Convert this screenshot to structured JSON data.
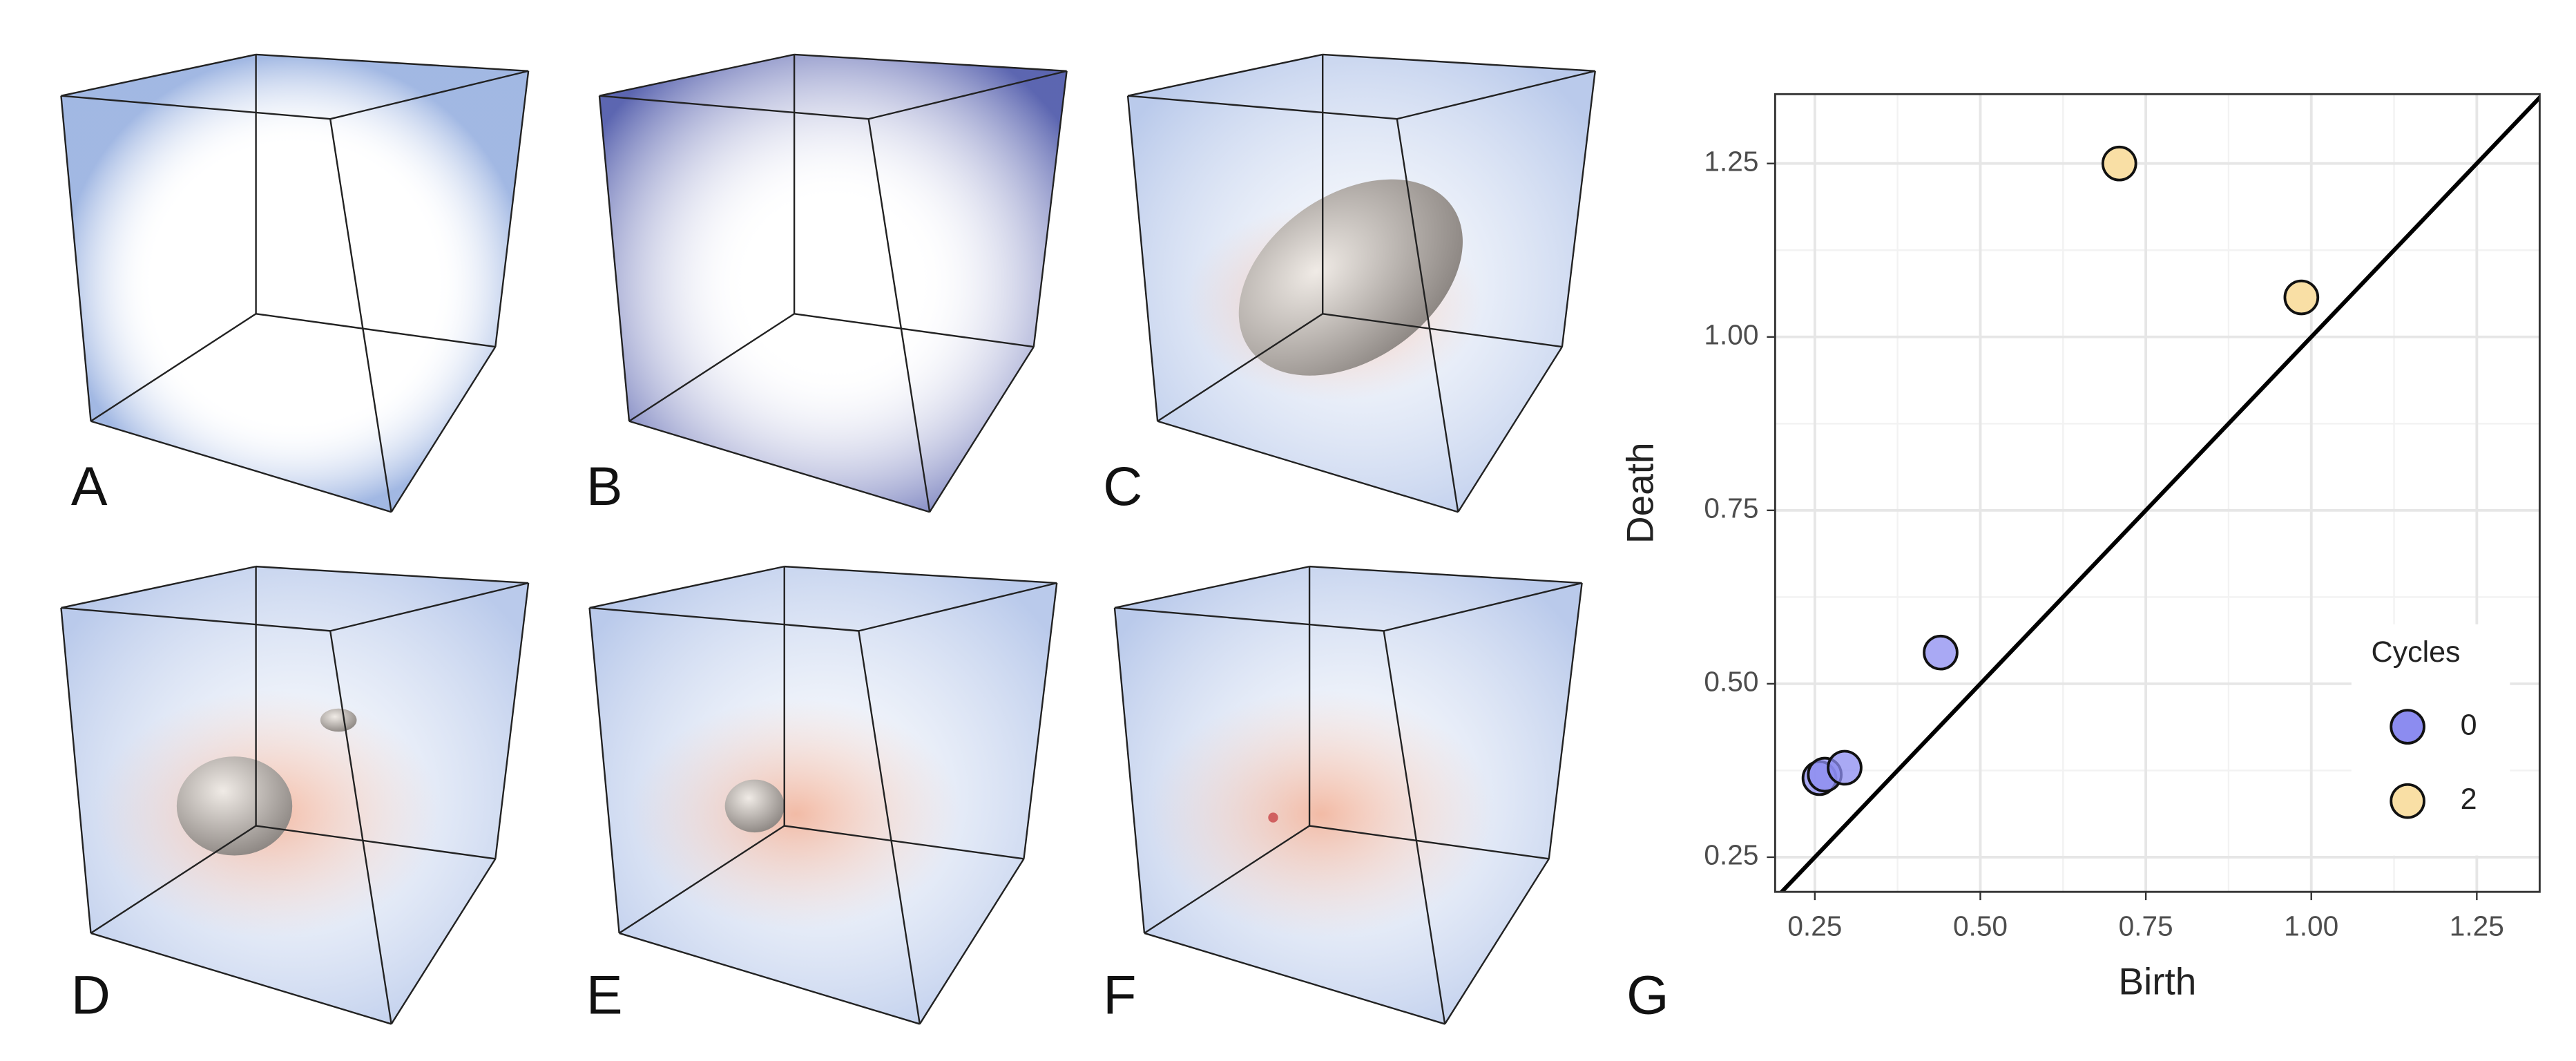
{
  "figure": {
    "panel_labels": [
      "A",
      "B",
      "C",
      "D",
      "E",
      "F",
      "G"
    ]
  },
  "chart_data": {
    "type": "scatter",
    "x_label": "Birth",
    "y_label": "Death",
    "legend_title": "Cycles",
    "legend_position": "right",
    "grid": true,
    "xlim": [
      0.19,
      1.345
    ],
    "ylim": [
      0.2,
      1.35
    ],
    "xticks": [
      0.25,
      {
        "value": 0.5,
        "label": "0.50"
      },
      0.75,
      {
        "value": 1,
        "label": "1.00"
      },
      1.25
    ],
    "yticks": [
      0.25,
      {
        "value": 0.5,
        "label": "0.50"
      },
      0.75,
      {
        "value": 1,
        "label": "1.00"
      },
      1.25
    ],
    "series": [
      {
        "name": "0",
        "color": "#8c8cf0",
        "x": [
          0.44,
          0.257,
          0.265,
          0.295
        ],
        "values": [
          0.545,
          0.364,
          0.369,
          0.379
        ]
      },
      {
        "name": "2",
        "color": "#f9dfa5",
        "x": [
          0.71,
          0.985
        ],
        "values": [
          1.25,
          1.057
        ]
      }
    ]
  }
}
